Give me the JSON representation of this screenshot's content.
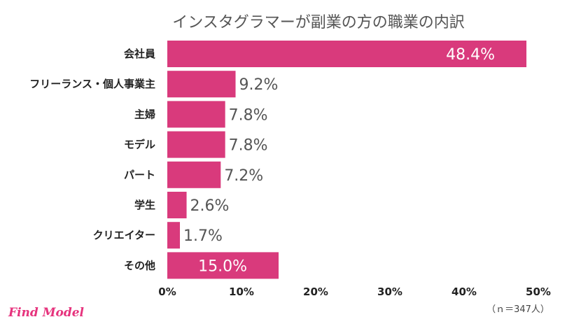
{
  "chart_data": {
    "type": "bar",
    "orientation": "horizontal",
    "title": "インスタグラマーが副業の方の職業の内訳",
    "categories": [
      "会社員",
      "フリーランス・個人事業主",
      "主婦",
      "モデル",
      "パート",
      "学生",
      "クリエイター",
      "その他"
    ],
    "values": [
      48.4,
      9.2,
      7.8,
      7.8,
      7.2,
      2.6,
      1.7,
      15.0
    ],
    "value_labels": [
      "48.4%",
      "9.2%",
      "7.8%",
      "7.8%",
      "7.2%",
      "2.6%",
      "1.7%",
      "15.0%"
    ],
    "xlim": [
      0,
      50
    ],
    "x_ticks": [
      0,
      10,
      20,
      30,
      40,
      50
    ],
    "x_tick_labels": [
      "0%",
      "10%",
      "20%",
      "30%",
      "40%",
      "50%"
    ],
    "bar_color": "#d93a7c",
    "grid": false,
    "note": "（ｎ＝347人）"
  },
  "branding": {
    "logo_text": "Find Model"
  }
}
